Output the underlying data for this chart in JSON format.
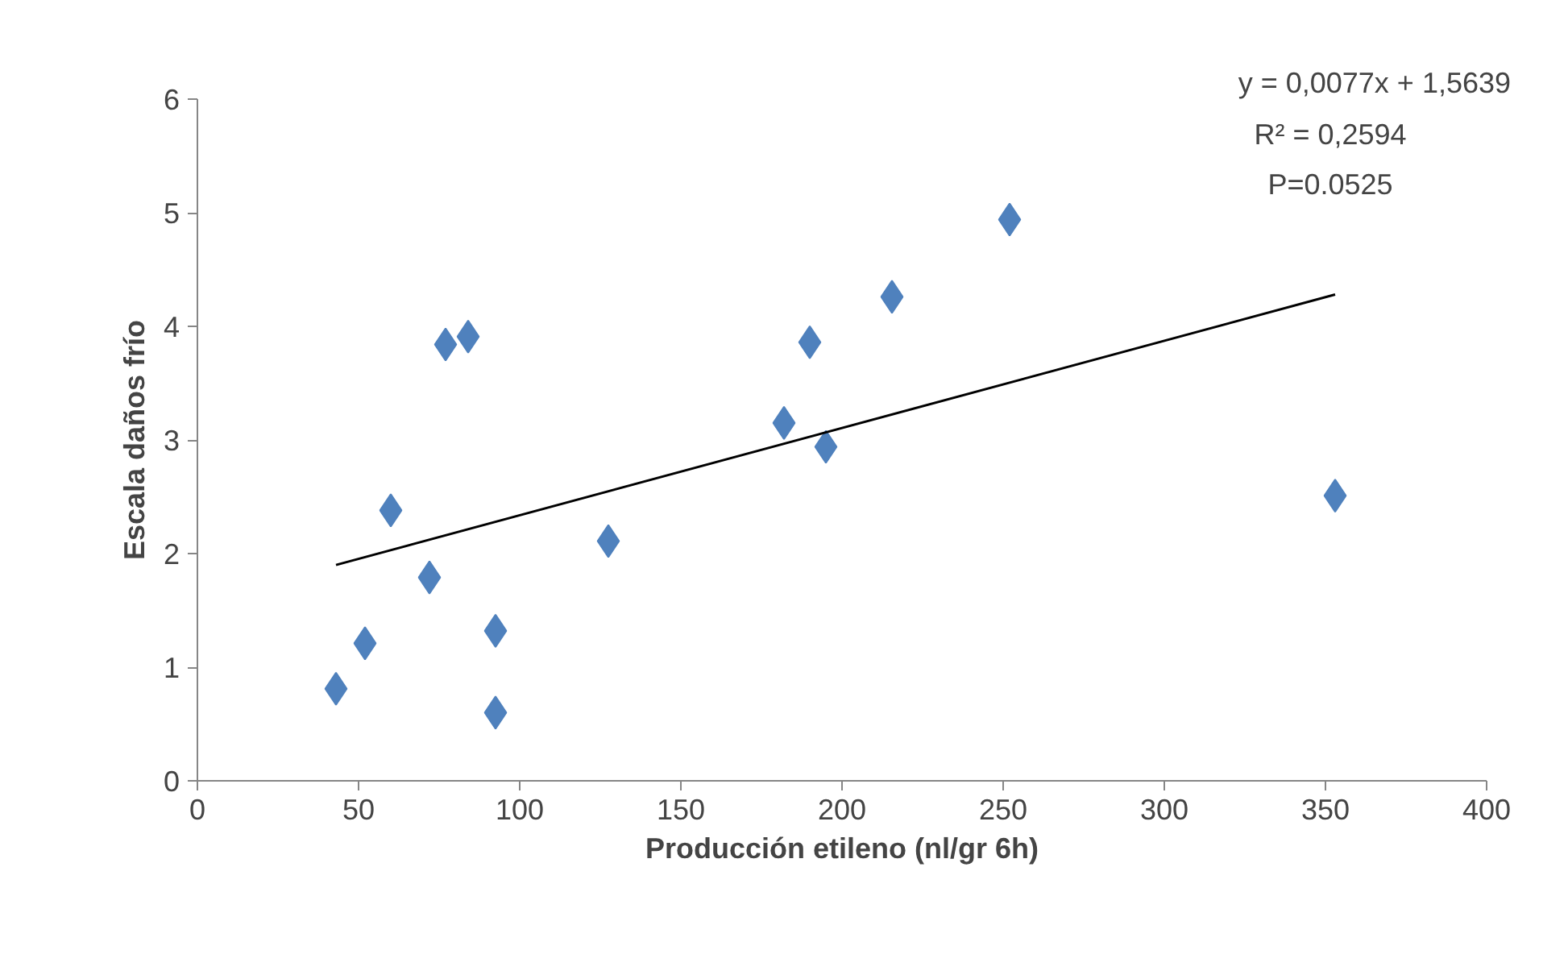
{
  "chart_data": {
    "type": "scatter",
    "xlabel": "Producción etileno (nl/gr 6h)",
    "ylabel": "Escala daños frío",
    "annotations": [
      "y = 0,0077x + 1,5639",
      "R² = 0,2594",
      "P=0.0525"
    ],
    "series": [
      {
        "marker": "diamond",
        "color": "#4f81bd",
        "x": [
          43,
          52,
          60,
          72,
          77,
          84,
          92.5,
          92.5,
          127.5,
          182,
          190,
          195,
          215.5,
          252,
          353
        ],
        "values": [
          0.81,
          1.21,
          2.38,
          1.79,
          3.84,
          3.91,
          1.32,
          0.6,
          2.11,
          3.15,
          3.86,
          2.94,
          4.26,
          4.94,
          2.51
        ]
      },
      {
        "type": "line",
        "color": "#000000",
        "x": [
          43,
          353
        ],
        "values": [
          1.9,
          4.28
        ]
      }
    ],
    "xlim": [
      0,
      400
    ],
    "xticks": [
      0,
      50,
      100,
      150,
      200,
      250,
      300,
      350,
      400
    ],
    "ylim": [
      0,
      6
    ],
    "yticks": [
      0,
      1,
      2,
      3,
      4,
      5,
      6
    ]
  }
}
